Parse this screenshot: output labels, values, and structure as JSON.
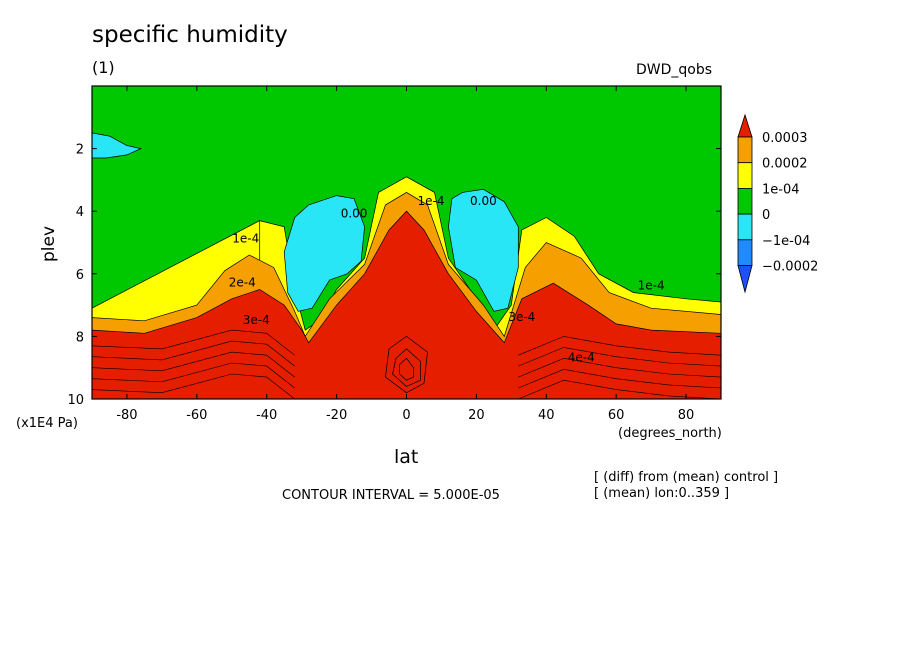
{
  "chart_data": {
    "type": "heatmap",
    "title": "specific humidity",
    "subtitle": "(1)",
    "dataset": "DWD_qobs",
    "xlabel": "lat",
    "xunit": "(degrees_north)",
    "ylabel": "plev",
    "yunit": "(x1E4 Pa)",
    "xlim": [
      -90,
      90
    ],
    "ylim": [
      10,
      0
    ],
    "x_ticks": [
      -80,
      -60,
      -40,
      -20,
      0,
      20,
      40,
      60,
      80
    ],
    "y_ticks": [
      2,
      4,
      6,
      8,
      10
    ],
    "contour_interval": "CONTOUR INTERVAL = 5.000E-05",
    "notes": [
      "[ (diff) from (mean) control ]",
      "[ (mean) lon:0..359 ]"
    ],
    "colorbar": {
      "labels": [
        "0.0003",
        "0.0002",
        "1e-04",
        "0",
        "−1e-04",
        "−0.0002"
      ],
      "colors": [
        "#e61e00",
        "#f5a000",
        "#ffff00",
        "#00c800",
        "#28e6f5",
        "#1e8cff",
        "#1e50ff"
      ]
    },
    "contour_labels": [
      {
        "text": "1e-4",
        "x": -46,
        "y": 5.0
      },
      {
        "text": "2e-4",
        "x": -47,
        "y": 6.4
      },
      {
        "text": "3e-4",
        "x": -43,
        "y": 7.6
      },
      {
        "text": "0.00",
        "x": -15,
        "y": 4.2
      },
      {
        "text": "0.00",
        "x": 22,
        "y": 3.8
      },
      {
        "text": "1e-4",
        "x": 7,
        "y": 3.8
      },
      {
        "text": "1e-4",
        "x": 70,
        "y": 6.5
      },
      {
        "text": "3e-4",
        "x": 33,
        "y": 7.5
      },
      {
        "text": "4e-4",
        "x": 50,
        "y": 8.8
      }
    ],
    "regions": [
      {
        "level": "0",
        "color": "#00c800",
        "polygon": [
          [
            -90,
            0
          ],
          [
            90,
            0
          ],
          [
            90,
            10
          ],
          [
            -90,
            10
          ]
        ]
      },
      {
        "level": "1e-04",
        "color": "#ffff00",
        "polygon": [
          [
            -90,
            7.1
          ],
          [
            -75,
            7.1
          ],
          [
            -60,
            6.7
          ],
          [
            -50,
            5.0
          ],
          [
            -42,
            4.3
          ],
          [
            -35,
            4.5
          ],
          [
            -32,
            6.5
          ],
          [
            -29,
            7.8
          ],
          [
            -25,
            7.5
          ],
          [
            -20,
            6.5
          ],
          [
            -12,
            5.5
          ],
          [
            -8,
            3.4
          ],
          [
            0,
            2.9
          ],
          [
            8,
            3.4
          ],
          [
            12,
            5.5
          ],
          [
            20,
            6.8
          ],
          [
            25,
            7.8
          ],
          [
            30,
            7.0
          ],
          [
            33,
            4.6
          ],
          [
            40,
            4.2
          ],
          [
            48,
            4.8
          ],
          [
            55,
            6.0
          ],
          [
            65,
            6.6
          ],
          [
            80,
            6.8
          ],
          [
            90,
            6.9
          ],
          [
            90,
            10
          ],
          [
            -90,
            10
          ]
        ]
      },
      {
        "level": "1e-04",
        "color": "#ffff00",
        "polygon": [
          [
            -90,
            7.1
          ],
          [
            -42,
            4.3
          ],
          [
            -42,
            10
          ],
          [
            -90,
            10
          ]
        ]
      },
      {
        "level": "0.0002",
        "color": "#f5a000",
        "polygon": [
          [
            -90,
            7.4
          ],
          [
            -75,
            7.5
          ],
          [
            -60,
            7.0
          ],
          [
            -52,
            5.9
          ],
          [
            -45,
            5.4
          ],
          [
            -38,
            5.8
          ],
          [
            -32,
            7.2
          ],
          [
            -29,
            8.0
          ],
          [
            -22,
            6.8
          ],
          [
            -12,
            5.7
          ],
          [
            -6,
            3.8
          ],
          [
            0,
            3.4
          ],
          [
            6,
            3.8
          ],
          [
            12,
            5.7
          ],
          [
            22,
            7.0
          ],
          [
            28,
            8.0
          ],
          [
            34,
            5.8
          ],
          [
            40,
            5.0
          ],
          [
            50,
            5.5
          ],
          [
            58,
            6.6
          ],
          [
            70,
            7.1
          ],
          [
            90,
            7.3
          ],
          [
            90,
            10
          ],
          [
            -90,
            10
          ]
        ]
      },
      {
        "level": "0.0003",
        "color": "#e61e00",
        "polygon": [
          [
            -90,
            7.8
          ],
          [
            -75,
            7.9
          ],
          [
            -60,
            7.4
          ],
          [
            -50,
            6.8
          ],
          [
            -42,
            6.5
          ],
          [
            -35,
            7.0
          ],
          [
            -30,
            7.8
          ],
          [
            -28,
            8.2
          ],
          [
            -20,
            7.0
          ],
          [
            -12,
            6.0
          ],
          [
            -5,
            4.6
          ],
          [
            0,
            4.0
          ],
          [
            5,
            4.6
          ],
          [
            12,
            6.0
          ],
          [
            20,
            7.2
          ],
          [
            28,
            8.2
          ],
          [
            33,
            6.8
          ],
          [
            42,
            6.3
          ],
          [
            52,
            7.0
          ],
          [
            60,
            7.6
          ],
          [
            70,
            7.8
          ],
          [
            90,
            7.9
          ],
          [
            90,
            10
          ],
          [
            -90,
            10
          ]
        ]
      },
      {
        "level": "−1e-04",
        "color": "#28e6f5",
        "polygon": [
          [
            -35,
            5.3
          ],
          [
            -32,
            4.2
          ],
          [
            -28,
            3.8
          ],
          [
            -20,
            3.5
          ],
          [
            -15,
            3.6
          ],
          [
            -12,
            4.5
          ],
          [
            -13,
            5.6
          ],
          [
            -17,
            6.0
          ],
          [
            -22,
            6.2
          ],
          [
            -27,
            7.1
          ],
          [
            -31,
            7.2
          ],
          [
            -34,
            6.6
          ]
        ]
      },
      {
        "level": "−1e-04",
        "color": "#28e6f5",
        "polygon": [
          [
            12,
            4.5
          ],
          [
            13,
            3.6
          ],
          [
            16,
            3.4
          ],
          [
            22,
            3.3
          ],
          [
            28,
            3.7
          ],
          [
            32,
            4.5
          ],
          [
            32,
            5.8
          ],
          [
            29,
            7.1
          ],
          [
            25,
            7.2
          ],
          [
            20,
            6.2
          ],
          [
            14,
            5.8
          ]
        ]
      },
      {
        "level": "−1e-04",
        "color": "#28e6f5",
        "polygon": [
          [
            -90,
            1.5
          ],
          [
            -85,
            1.6
          ],
          [
            -80,
            1.9
          ],
          [
            -76,
            2.0
          ],
          [
            -80,
            2.2
          ],
          [
            -86,
            2.3
          ],
          [
            -90,
            2.3
          ]
        ]
      }
    ]
  }
}
